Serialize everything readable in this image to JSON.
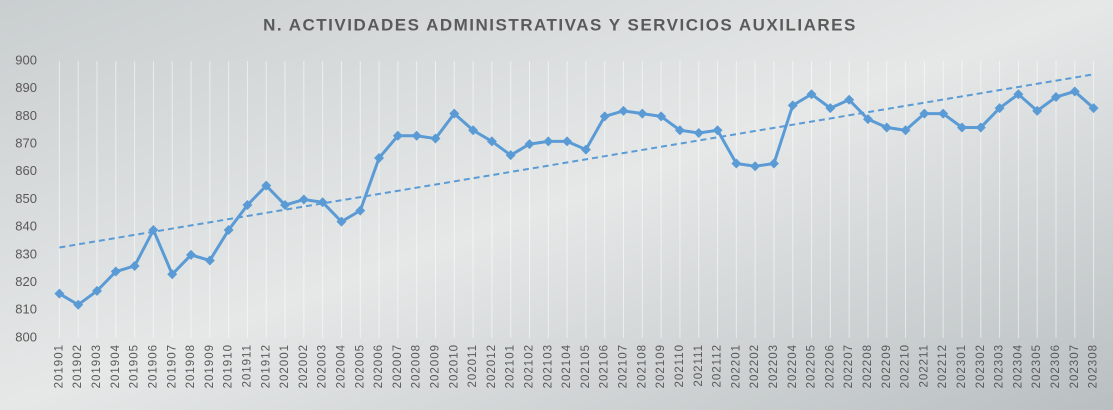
{
  "chart_data": {
    "type": "line",
    "title": "N. ACTIVIDADES ADMINISTRATIVAS Y SERVICIOS AUXILIARES",
    "categories": [
      "201901",
      "201902",
      "201903",
      "201904",
      "201905",
      "201906",
      "201907",
      "201908",
      "201909",
      "201910",
      "201911",
      "201912",
      "202001",
      "202002",
      "202003",
      "202004",
      "202005",
      "202006",
      "202007",
      "202008",
      "202009",
      "202010",
      "202011",
      "202012",
      "202101",
      "202102",
      "202103",
      "202104",
      "202105",
      "202106",
      "202107",
      "202108",
      "202109",
      "202110",
      "202111",
      "202112",
      "202201",
      "202202",
      "202203",
      "202204",
      "202205",
      "202206",
      "202207",
      "202208",
      "202209",
      "202210",
      "202211",
      "202212",
      "202301",
      "202302",
      "202303",
      "202304",
      "202305",
      "202306",
      "202307",
      "202308"
    ],
    "values": [
      816,
      812,
      817,
      824,
      826,
      839,
      823,
      830,
      828,
      839,
      848,
      855,
      848,
      850,
      849,
      842,
      846,
      865,
      873,
      873,
      872,
      881,
      875,
      871,
      866,
      870,
      871,
      871,
      868,
      880,
      882,
      881,
      880,
      875,
      874,
      875,
      863,
      862,
      863,
      884,
      888,
      883,
      886,
      879,
      876,
      875,
      881,
      881,
      876,
      876,
      883,
      888,
      882,
      887,
      889,
      883
    ],
    "color": "#5b9bd5",
    "trendline": "linear",
    "ylim": [
      800,
      900
    ],
    "yticks": [
      800,
      810,
      820,
      830,
      840,
      850,
      860,
      870,
      880,
      890,
      900
    ],
    "grid": "vertical"
  }
}
